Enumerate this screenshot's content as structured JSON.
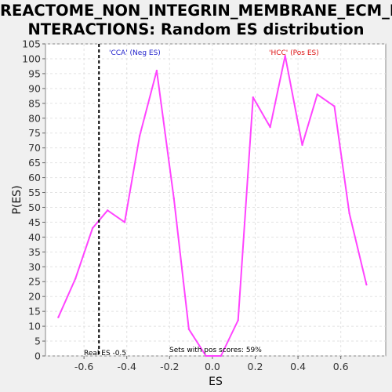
{
  "chart_data": {
    "type": "line",
    "title_line1": "REACTOME_NON_INTEGRIN_MEMBRANE_ECM_I",
    "title_line2": "NTERACTIONS: Random ES distribution",
    "xlabel": "ES",
    "ylabel": "P(ES)",
    "xlim": [
      -0.78,
      0.81
    ],
    "ylim": [
      0,
      105
    ],
    "xticks": [
      "-0.6",
      "-0.4",
      "-0.2",
      "0.0",
      "0.2",
      "0.4",
      "0.6"
    ],
    "xtick_values": [
      -0.6,
      -0.4,
      -0.2,
      0.0,
      0.2,
      0.4,
      0.6
    ],
    "ytick_values": [
      0,
      5,
      10,
      15,
      20,
      25,
      30,
      35,
      40,
      45,
      50,
      55,
      60,
      65,
      70,
      75,
      80,
      85,
      90,
      95,
      100,
      105
    ],
    "grid": true,
    "series": [
      {
        "color": "#ff44ff",
        "x": [
          -0.72,
          -0.64,
          -0.56,
          -0.49,
          -0.41,
          -0.34,
          -0.26,
          -0.18,
          -0.11,
          -0.03,
          0.04,
          0.12,
          0.19,
          0.27,
          0.34,
          0.42,
          0.49,
          0.57,
          0.64,
          0.72
        ],
        "y": [
          13,
          26,
          43,
          49,
          45,
          74,
          96,
          53,
          9,
          0,
          0,
          12,
          87,
          77,
          101,
          71,
          88,
          84,
          48,
          24
        ]
      }
    ],
    "real_es": {
      "value": -0.53,
      "label": "Real ES -0.5",
      "color": "#000000"
    },
    "annotations": [
      {
        "text": "'CCA' (Neg ES)",
        "color": "#2222cc"
      },
      {
        "text": "'HCC' (Pos ES)",
        "color": "#dd1111"
      },
      {
        "text": "Sets with pos scores: 59%",
        "color": "#000000"
      }
    ]
  }
}
